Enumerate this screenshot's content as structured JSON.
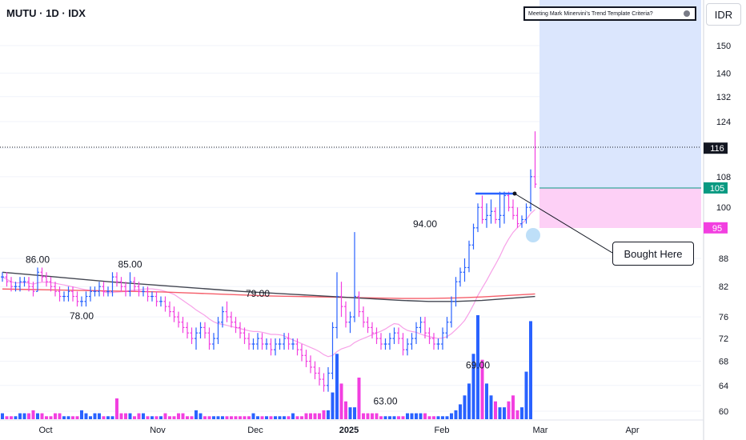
{
  "header": {
    "symbol": "MUTU · 1D · IDX"
  },
  "criteria": {
    "label": "Meeting Mark Minervini's Trend Template Criteria?"
  },
  "currency": "IDR",
  "callout": {
    "label": "Bought Here"
  },
  "chart_data": {
    "type": "bar",
    "title": "MUTU · 1D · IDX",
    "price_axis": {
      "ticks": [
        150,
        140,
        132,
        124,
        116,
        108,
        100,
        88,
        82,
        76,
        72,
        68,
        64,
        60
      ],
      "scale": "log",
      "range": [
        58.5,
        158
      ]
    },
    "time_axis": {
      "labels": [
        "Oct",
        "Nov",
        "Dec",
        "2025",
        "Feb",
        "Mar",
        "Apr"
      ]
    },
    "price_tags": [
      {
        "value": "116",
        "color": "#131722"
      },
      {
        "value": "105",
        "color": "#089981"
      },
      {
        "value": "95",
        "color": "#f23fe0"
      }
    ],
    "annotations": [
      {
        "text": "86.00",
        "price": 86,
        "bar": 8
      },
      {
        "text": "78.00",
        "price": 78,
        "bar": 18
      },
      {
        "text": "85.00",
        "price": 85,
        "bar": 29
      },
      {
        "text": "79.00",
        "price": 79,
        "bar": 58
      },
      {
        "text": "63.00",
        "price": 63,
        "bar": 87
      },
      {
        "text": "94.00",
        "price": 94,
        "bar": 96
      },
      {
        "text": "69.00",
        "price": 69,
        "bar": 108
      }
    ],
    "ohlc": [
      [
        84,
        85,
        83,
        84
      ],
      [
        84,
        85,
        82,
        83
      ],
      [
        83,
        84,
        81,
        82
      ],
      [
        82,
        83,
        81,
        82
      ],
      [
        82,
        84,
        81,
        83
      ],
      [
        83,
        84,
        82,
        83
      ],
      [
        83,
        84,
        81,
        82
      ],
      [
        82,
        83,
        80,
        81
      ],
      [
        81,
        86,
        81,
        85
      ],
      [
        85,
        86,
        83,
        84
      ],
      [
        84,
        85,
        82,
        83
      ],
      [
        83,
        84,
        81,
        82
      ],
      [
        82,
        83,
        80,
        81
      ],
      [
        81,
        82,
        79,
        80
      ],
      [
        80,
        81,
        79,
        80
      ],
      [
        80,
        82,
        79,
        81
      ],
      [
        81,
        82,
        79,
        80
      ],
      [
        80,
        81,
        78,
        79
      ],
      [
        79,
        80,
        78,
        79
      ],
      [
        79,
        81,
        78,
        80
      ],
      [
        80,
        82,
        79,
        81
      ],
      [
        81,
        82,
        80,
        81
      ],
      [
        81,
        83,
        80,
        82
      ],
      [
        82,
        83,
        80,
        81
      ],
      [
        81,
        82,
        80,
        81
      ],
      [
        81,
        85,
        80,
        84
      ],
      [
        84,
        85,
        82,
        83
      ],
      [
        83,
        84,
        81,
        82
      ],
      [
        82,
        83,
        80,
        81
      ],
      [
        81,
        85,
        80,
        83
      ],
      [
        83,
        84,
        81,
        82
      ],
      [
        82,
        83,
        80,
        81
      ],
      [
        81,
        82,
        80,
        81
      ],
      [
        81,
        82,
        79,
        80
      ],
      [
        80,
        81,
        79,
        80
      ],
      [
        80,
        81,
        78,
        79
      ],
      [
        79,
        80,
        78,
        79
      ],
      [
        79,
        80,
        77,
        78
      ],
      [
        78,
        79,
        76,
        77
      ],
      [
        77,
        78,
        75,
        76
      ],
      [
        76,
        77,
        74,
        75
      ],
      [
        75,
        76,
        73,
        74
      ],
      [
        74,
        75,
        72,
        73
      ],
      [
        73,
        74,
        71,
        72
      ],
      [
        72,
        74,
        70,
        73
      ],
      [
        73,
        75,
        72,
        74
      ],
      [
        74,
        75,
        72,
        73
      ],
      [
        73,
        74,
        70,
        71
      ],
      [
        71,
        73,
        70,
        72
      ],
      [
        72,
        76,
        71,
        75
      ],
      [
        75,
        78,
        74,
        77
      ],
      [
        77,
        79,
        75,
        76
      ],
      [
        76,
        77,
        74,
        75
      ],
      [
        75,
        76,
        73,
        74
      ],
      [
        74,
        75,
        72,
        73
      ],
      [
        73,
        74,
        71,
        72
      ],
      [
        72,
        73,
        70,
        71
      ],
      [
        71,
        72,
        70,
        71
      ],
      [
        71,
        73,
        70,
        72
      ],
      [
        72,
        73,
        70,
        71
      ],
      [
        71,
        72,
        70,
        71
      ],
      [
        71,
        72,
        69,
        70
      ],
      [
        70,
        72,
        69,
        71
      ],
      [
        71,
        72,
        70,
        71
      ],
      [
        71,
        73,
        70,
        72
      ],
      [
        72,
        73,
        70,
        71
      ],
      [
        71,
        72,
        70,
        71
      ],
      [
        71,
        72,
        69,
        70
      ],
      [
        70,
        71,
        68,
        69
      ],
      [
        69,
        70,
        67,
        68
      ],
      [
        68,
        69,
        66,
        67
      ],
      [
        67,
        68,
        65,
        66
      ],
      [
        66,
        67,
        64,
        65
      ],
      [
        65,
        66,
        63,
        64
      ],
      [
        64,
        67,
        63,
        66
      ],
      [
        66,
        75,
        65,
        74
      ],
      [
        74,
        85,
        72,
        80
      ],
      [
        80,
        83,
        76,
        78
      ],
      [
        78,
        79,
        74,
        75
      ],
      [
        75,
        77,
        73,
        76
      ],
      [
        76,
        94,
        75,
        80
      ],
      [
        80,
        81,
        76,
        77
      ],
      [
        77,
        78,
        74,
        75
      ],
      [
        75,
        76,
        73,
        74
      ],
      [
        74,
        75,
        72,
        73
      ],
      [
        73,
        74,
        71,
        72
      ],
      [
        72,
        73,
        70,
        71
      ],
      [
        71,
        72,
        70,
        71
      ],
      [
        71,
        73,
        70,
        72
      ],
      [
        72,
        74,
        71,
        73
      ],
      [
        73,
        74,
        71,
        72
      ],
      [
        72,
        73,
        69,
        70
      ],
      [
        70,
        72,
        69,
        71
      ],
      [
        71,
        73,
        70,
        72
      ],
      [
        72,
        75,
        71,
        74
      ],
      [
        74,
        76,
        73,
        75
      ],
      [
        75,
        76,
        72,
        73
      ],
      [
        73,
        74,
        71,
        72
      ],
      [
        72,
        73,
        70,
        71
      ],
      [
        71,
        72,
        70,
        71
      ],
      [
        71,
        74,
        70,
        73
      ],
      [
        73,
        76,
        72,
        75
      ],
      [
        75,
        80,
        74,
        79
      ],
      [
        79,
        84,
        78,
        83
      ],
      [
        83,
        86,
        82,
        85
      ],
      [
        85,
        88,
        83,
        86
      ],
      [
        86,
        92,
        85,
        91
      ],
      [
        91,
        96,
        90,
        95
      ],
      [
        95,
        101,
        94,
        100
      ],
      [
        100,
        103,
        96,
        97
      ],
      [
        97,
        101,
        95,
        98
      ],
      [
        98,
        102,
        96,
        99
      ],
      [
        99,
        100,
        96,
        97
      ],
      [
        97,
        104,
        95,
        98
      ],
      [
        98,
        104,
        96,
        103
      ],
      [
        103,
        104,
        99,
        100
      ],
      [
        100,
        102,
        97,
        98
      ],
      [
        98,
        100,
        95,
        96
      ],
      [
        96,
        98,
        95,
        97
      ],
      [
        97,
        101,
        96,
        100
      ],
      [
        100,
        110,
        99,
        108
      ],
      [
        108,
        121,
        105,
        106
      ]
    ],
    "volume": [
      2,
      1,
      1,
      1,
      2,
      2,
      2,
      3,
      2,
      2,
      1,
      1,
      2,
      2,
      1,
      1,
      1,
      1,
      3,
      2,
      1,
      2,
      2,
      1,
      1,
      1,
      7,
      2,
      2,
      2,
      1,
      2,
      2,
      1,
      1,
      1,
      1,
      2,
      1,
      1,
      2,
      2,
      1,
      1,
      3,
      2,
      1,
      1,
      1,
      1,
      1,
      1,
      1,
      1,
      1,
      1,
      1,
      2,
      1,
      1,
      1,
      1,
      1,
      1,
      1,
      1,
      2,
      1,
      1,
      2,
      2,
      2,
      2,
      3,
      3,
      9,
      22,
      12,
      6,
      4,
      4,
      14,
      2,
      2,
      2,
      2,
      1,
      1,
      1,
      1,
      1,
      1,
      2,
      2,
      2,
      2,
      2,
      1,
      1,
      1,
      1,
      1,
      2,
      3,
      5,
      8,
      12,
      22,
      35,
      20,
      12,
      8,
      6,
      4,
      4,
      6,
      8,
      3,
      4,
      16,
      33
    ]
  }
}
